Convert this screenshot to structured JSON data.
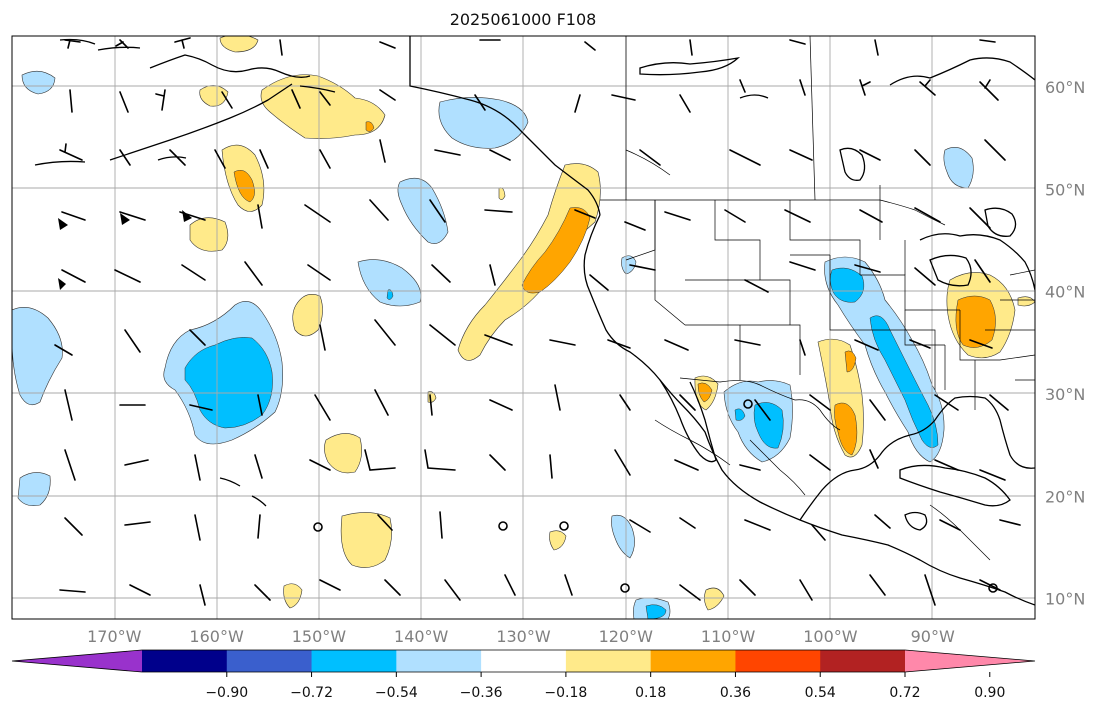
{
  "title": "2025061000 F108",
  "map": {
    "lon_range": [
      -180,
      -80
    ],
    "lat_range": [
      8,
      65
    ],
    "lon_ticks": [
      {
        "value": -170,
        "label": "170°W"
      },
      {
        "value": -160,
        "label": "160°W"
      },
      {
        "value": -150,
        "label": "150°W"
      },
      {
        "value": -140,
        "label": "140°W"
      },
      {
        "value": -130,
        "label": "130°W"
      },
      {
        "value": -120,
        "label": "120°W"
      },
      {
        "value": -110,
        "label": "110°W"
      },
      {
        "value": -100,
        "label": "100°W"
      },
      {
        "value": -90,
        "label": "90°W"
      }
    ],
    "lat_ticks": [
      {
        "value": 60,
        "label": "60°N"
      },
      {
        "value": 50,
        "label": "50°N"
      },
      {
        "value": 40,
        "label": "40°N"
      },
      {
        "value": 30,
        "label": "30°N"
      },
      {
        "value": 20,
        "label": "20°N"
      },
      {
        "value": 10,
        "label": "10°N"
      }
    ],
    "grid": true
  },
  "colorbar": {
    "colors": [
      "#9932cc",
      "#00008b",
      "#3a5fcd",
      "#00bfff",
      "#b0e0ff",
      "#ffffff",
      "#ffea8a",
      "#ffa500",
      "#ff4500",
      "#b22222",
      "#ff88aa"
    ],
    "labels": [
      "−0.90",
      "−0.72",
      "−0.54",
      "−0.36",
      "−0.18",
      "0.18",
      "0.36",
      "0.54",
      "0.72",
      "0.90"
    ],
    "extend": "both"
  }
}
